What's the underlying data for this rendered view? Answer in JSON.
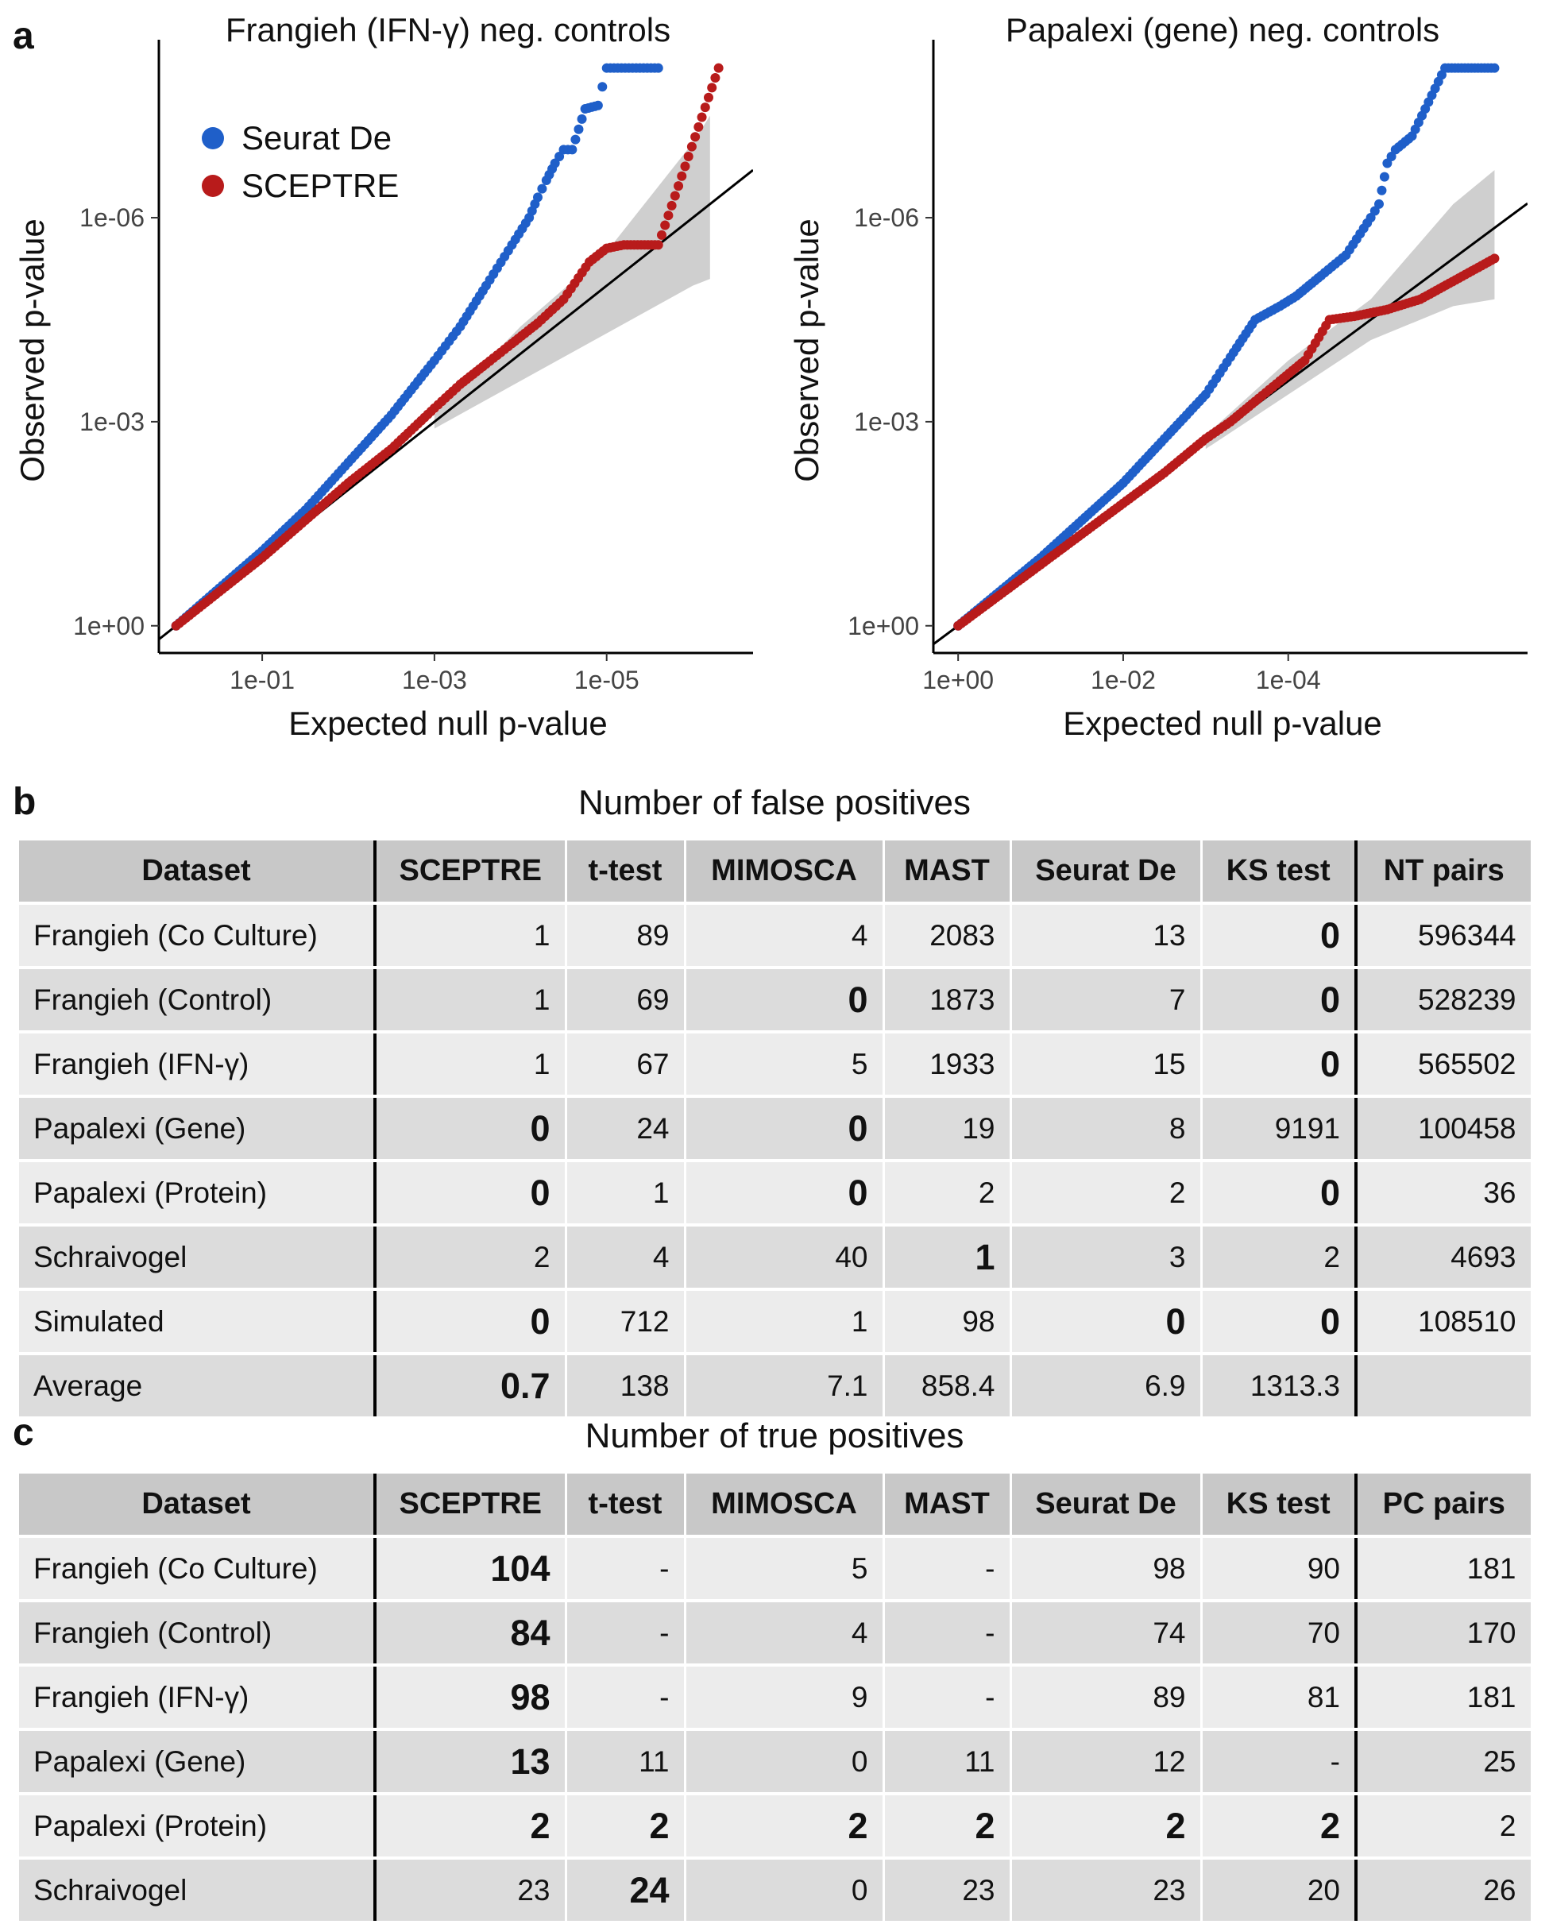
{
  "panels": {
    "a": "a",
    "b": "b",
    "c": "c"
  },
  "chart_data": [
    {
      "type": "scatter",
      "title": "Frangieh (IFN-γ) neg. controls",
      "xlabel": "Expected null p-value",
      "ylabel": "Observed p-value",
      "axis_scale": "-log10 (reversed)",
      "x_ticks": [
        "1e-01",
        "1e-03",
        "1e-05"
      ],
      "y_ticks": [
        "1e+00",
        "1e-03",
        "1e-06"
      ],
      "xlim_neglog10": [
        -0.2,
        6.7
      ],
      "ylim_neglog10": [
        -0.4,
        8.5
      ],
      "legend": {
        "position": "top-left",
        "entries": [
          "Seurat De",
          "SCEPTRE"
        ]
      },
      "colors": {
        "seurat": "#1f5fc9",
        "sceptre": "#b81b1b",
        "band": "#cfcfcf",
        "line": "#000000"
      },
      "reference_line": "y = x",
      "confidence_band": {
        "x": [
          3.0,
          4.0,
          5.0,
          6.0,
          6.2
        ],
        "lower": [
          2.9,
          3.6,
          4.3,
          5.0,
          5.1
        ],
        "upper": [
          3.1,
          4.4,
          5.5,
          7.1,
          7.5
        ]
      },
      "series": [
        {
          "name": "Seurat De",
          "x": [
            0,
            0.5,
            1,
            1.5,
            2,
            2.5,
            3,
            3.3,
            3.6,
            3.9,
            4.1,
            4.2,
            4.3,
            4.4,
            4.5,
            4.6,
            4.75,
            4.9,
            5.0,
            5.3,
            5.6
          ],
          "y": [
            0,
            0.55,
            1.1,
            1.7,
            2.4,
            3.1,
            3.9,
            4.4,
            5.0,
            5.6,
            6.0,
            6.3,
            6.55,
            6.8,
            7.0,
            7.0,
            7.6,
            7.65,
            8.2,
            8.2,
            8.2
          ]
        },
        {
          "name": "SCEPTRE",
          "x": [
            0,
            0.5,
            1,
            1.5,
            2,
            2.5,
            3,
            3.3,
            3.6,
            3.9,
            4.2,
            4.5,
            4.8,
            5.0,
            5.2,
            5.6,
            6.3
          ],
          "y": [
            0,
            0.5,
            1.0,
            1.55,
            2.1,
            2.6,
            3.2,
            3.55,
            3.85,
            4.15,
            4.45,
            4.8,
            5.35,
            5.55,
            5.6,
            5.6,
            8.2
          ]
        }
      ]
    },
    {
      "type": "scatter",
      "title": "Papalexi (gene) neg. controls",
      "xlabel": "Expected null p-value",
      "ylabel": "Observed p-value",
      "axis_scale": "-log10 (reversed)",
      "x_ticks": [
        "1e+00",
        "1e-02",
        "1e-04"
      ],
      "y_ticks": [
        "1e+00",
        "1e-03",
        "1e-06"
      ],
      "xlim_neglog10": [
        -0.3,
        6.9
      ],
      "ylim_neglog10": [
        -0.4,
        8.5
      ],
      "colors": {
        "seurat": "#1f5fc9",
        "sceptre": "#b81b1b",
        "band": "#cfcfcf",
        "line": "#000000"
      },
      "reference_line": "y = 0.9x",
      "confidence_band": {
        "x": [
          3.0,
          4.0,
          5.0,
          6.0,
          6.5
        ],
        "lower": [
          2.6,
          3.4,
          4.2,
          4.7,
          4.8
        ],
        "upper": [
          2.8,
          3.9,
          4.8,
          6.2,
          6.7
        ]
      },
      "series": [
        {
          "name": "Seurat De",
          "x": [
            0,
            0.5,
            1,
            1.5,
            2,
            2.5,
            3,
            3.3,
            3.6,
            3.9,
            4.1,
            4.4,
            4.7,
            5.0,
            5.1,
            5.2,
            5.3,
            5.5,
            5.9,
            6.5
          ],
          "y": [
            0,
            0.5,
            1.0,
            1.55,
            2.1,
            2.75,
            3.4,
            3.95,
            4.5,
            4.7,
            4.85,
            5.15,
            5.45,
            6.0,
            6.2,
            6.8,
            7.0,
            7.2,
            8.2,
            8.2
          ]
        },
        {
          "name": "SCEPTRE",
          "x": [
            0,
            0.5,
            1,
            1.5,
            2,
            2.5,
            3,
            3.3,
            3.6,
            3.9,
            4.2,
            4.5,
            4.8,
            5.2,
            5.6,
            6.5
          ],
          "y": [
            0,
            0.45,
            0.9,
            1.35,
            1.8,
            2.25,
            2.75,
            3.0,
            3.3,
            3.6,
            3.9,
            4.5,
            4.55,
            4.65,
            4.8,
            5.4
          ]
        }
      ]
    },
    {
      "type": "table",
      "title": "Number of false positives",
      "columns": [
        "Dataset",
        "SCEPTRE",
        "t-test",
        "MIMOSCA",
        "MAST",
        "Seurat De",
        "KS test",
        "NT pairs"
      ],
      "rows": [
        {
          "cells": [
            "Frangieh (Co Culture)",
            "1",
            "89",
            "4",
            "2083",
            "13",
            "0",
            "596344"
          ],
          "bold": [
            6
          ]
        },
        {
          "cells": [
            "Frangieh (Control)",
            "1",
            "69",
            "0",
            "1873",
            "7",
            "0",
            "528239"
          ],
          "bold": [
            3,
            6
          ]
        },
        {
          "cells": [
            "Frangieh (IFN-γ)",
            "1",
            "67",
            "5",
            "1933",
            "15",
            "0",
            "565502"
          ],
          "bold": [
            6
          ]
        },
        {
          "cells": [
            "Papalexi (Gene)",
            "0",
            "24",
            "0",
            "19",
            "8",
            "9191",
            "100458"
          ],
          "bold": [
            1,
            3
          ]
        },
        {
          "cells": [
            "Papalexi (Protein)",
            "0",
            "1",
            "0",
            "2",
            "2",
            "0",
            "36"
          ],
          "bold": [
            1,
            3,
            6
          ]
        },
        {
          "cells": [
            "Schraivogel",
            "2",
            "4",
            "40",
            "1",
            "3",
            "2",
            "4693"
          ],
          "bold": [
            4
          ]
        },
        {
          "cells": [
            "Simulated",
            "0",
            "712",
            "1",
            "98",
            "0",
            "0",
            "108510"
          ],
          "bold": [
            1,
            5,
            6
          ]
        },
        {
          "cells": [
            "Average",
            "0.7",
            "138",
            "7.1",
            "858.4",
            "6.9",
            "1313.3",
            ""
          ],
          "bold": [
            1
          ],
          "average": true
        }
      ]
    },
    {
      "type": "table",
      "title": "Number of true positives",
      "columns": [
        "Dataset",
        "SCEPTRE",
        "t-test",
        "MIMOSCA",
        "MAST",
        "Seurat De",
        "KS test",
        "PC pairs"
      ],
      "rows": [
        {
          "cells": [
            "Frangieh (Co Culture)",
            "104",
            "-",
            "5",
            "-",
            "98",
            "90",
            "181"
          ],
          "bold": [
            1
          ]
        },
        {
          "cells": [
            "Frangieh (Control)",
            "84",
            "-",
            "4",
            "-",
            "74",
            "70",
            "170"
          ],
          "bold": [
            1
          ]
        },
        {
          "cells": [
            "Frangieh (IFN-γ)",
            "98",
            "-",
            "9",
            "-",
            "89",
            "81",
            "181"
          ],
          "bold": [
            1
          ]
        },
        {
          "cells": [
            "Papalexi (Gene)",
            "13",
            "11",
            "0",
            "11",
            "12",
            "-",
            "25"
          ],
          "bold": [
            1
          ]
        },
        {
          "cells": [
            "Papalexi (Protein)",
            "2",
            "2",
            "2",
            "2",
            "2",
            "2",
            "2"
          ],
          "bold": [
            1,
            2,
            3,
            4,
            5,
            6
          ]
        },
        {
          "cells": [
            "Schraivogel",
            "23",
            "24",
            "0",
            "23",
            "23",
            "20",
            "26"
          ],
          "bold": [
            2
          ]
        }
      ]
    }
  ]
}
